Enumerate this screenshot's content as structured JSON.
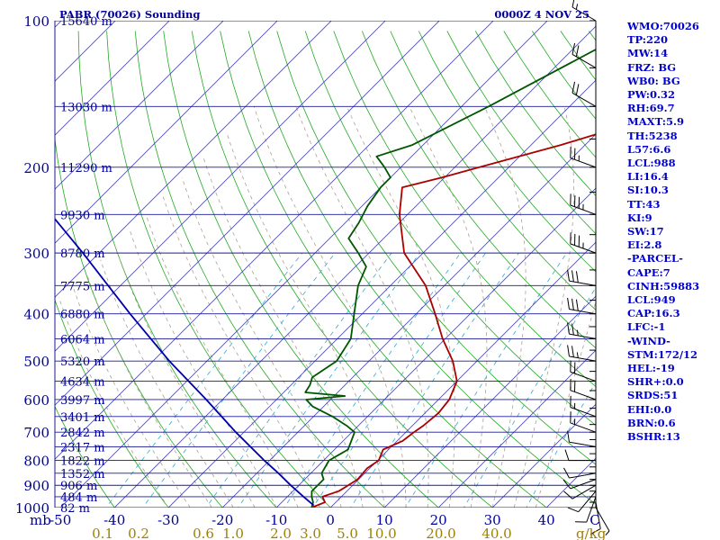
{
  "header": {
    "station": "PABR (70026) Sounding",
    "time": "0000Z  4 NOV 25"
  },
  "sidebar": [
    "WMO:70026",
    "TP:220",
    "MW:14",
    "FRZ: BG",
    "WB0: BG",
    "PW:0.32",
    "RH:69.7",
    "MAXT:5.9",
    "TH:5238",
    "L57:6.6",
    "LCL:988",
    "LI:16.4",
    "SI:10.3",
    "TT:43",
    "KI:9",
    "SW:17",
    "EI:2.8",
    "-PARCEL-",
    "CAPE:7",
    "CINH:59883",
    "LCL:949",
    "CAP:16.3",
    "LFC:-1",
    "-WIND-",
    "STM:172/12",
    "HEL:-19",
    "SHR+:0.0",
    "SRDS:51",
    "EHI:0.0",
    "BRN:0.6",
    "BSHR:13"
  ],
  "colors": {
    "isobar": "#1a1a9a",
    "isotherm": "#4040a0",
    "dry_adiabat": "#22aa22",
    "moist_adiabat": "#b0a090",
    "mixing_ratio": "#33aacc",
    "temperature": "#aa0000",
    "dewpoint": "#005500",
    "parcel": "#0000aa",
    "label": "#000099",
    "mixing_label": "#a08000",
    "wind_barb": "#000000"
  },
  "chart_data": {
    "type": "line",
    "title": "PABR (70026) Sounding",
    "subtitle": "0000Z  4 NOV 25",
    "xlabel": "",
    "ylabel": "mb",
    "y_scale": "log",
    "ylim": [
      1000,
      100
    ],
    "xlim": [
      -50,
      50
    ],
    "grid": true,
    "pressure_ticks": [
      100,
      200,
      300,
      400,
      500,
      600,
      700,
      800,
      900,
      1000
    ],
    "pressure_tick_labels": [
      "100",
      "200",
      "300",
      "400",
      "500",
      "600",
      "700",
      "800",
      "900",
      "1000"
    ],
    "y_axis_title": "mb",
    "temperature_ticks": [
      -50,
      -40,
      -30,
      -20,
      -10,
      0,
      10,
      20,
      30,
      40
    ],
    "temperature_tick_labels": [
      "-50",
      "-40",
      "-30",
      "-20",
      "-10",
      "0",
      "10",
      "20",
      "30",
      "40"
    ],
    "corner_label": "C",
    "mixing_ratio_labels": [
      "0.1",
      "0.2",
      "0.6",
      "1.0",
      "2.0",
      "3.0",
      "5.0",
      "10.0",
      "20.0",
      "40.0"
    ],
    "mixing_ratio_unit": "g/kg",
    "height_labels": [
      {
        "p": 100,
        "label": "15640 m"
      },
      {
        "p": 150,
        "label": "13030 m"
      },
      {
        "p": 200,
        "label": "11290 m"
      },
      {
        "p": 250,
        "label": "9930 m"
      },
      {
        "p": 300,
        "label": "8780 m"
      },
      {
        "p": 350,
        "label": "7775 m"
      },
      {
        "p": 400,
        "label": "6880 m"
      },
      {
        "p": 450,
        "label": "6064 m"
      },
      {
        "p": 500,
        "label": "5320 m"
      },
      {
        "p": 550,
        "label": "4634 m"
      },
      {
        "p": 600,
        "label": "3997 m"
      },
      {
        "p": 650,
        "label": "3401 m"
      },
      {
        "p": 700,
        "label": "2842 m"
      },
      {
        "p": 750,
        "label": "2317 m"
      },
      {
        "p": 800,
        "label": "1822 m"
      },
      {
        "p": 850,
        "label": "1352 m"
      },
      {
        "p": 900,
        "label": "906 m"
      },
      {
        "p": 950,
        "label": "484 m"
      },
      {
        "p": 1000,
        "label": "82 m"
      }
    ],
    "series": [
      {
        "key": "temperature",
        "points": [
          [
            1000,
            -3.5
          ],
          [
            975,
            -2.0
          ],
          [
            950,
            -3.5
          ],
          [
            925,
            -1.5
          ],
          [
            875,
            -0.2
          ],
          [
            830,
            -0.5
          ],
          [
            800,
            0.2
          ],
          [
            760,
            -1.0
          ],
          [
            730,
            1.0
          ],
          [
            700,
            1.5
          ],
          [
            680,
            2.0
          ],
          [
            640,
            2.5
          ],
          [
            600,
            2.0
          ],
          [
            550,
            0.0
          ],
          [
            500,
            -4.5
          ],
          [
            450,
            -10.5
          ],
          [
            400,
            -16.5
          ],
          [
            350,
            -23.5
          ],
          [
            300,
            -33.5
          ],
          [
            250,
            -41.5
          ],
          [
            220,
            -46.0
          ],
          [
            210,
            -40.5
          ],
          [
            200,
            -35.5
          ],
          [
            180,
            -24.5
          ],
          [
            150,
            -8.0
          ],
          [
            125,
            3.0
          ],
          [
            110,
            9.0
          ],
          [
            100,
            13.5
          ]
        ]
      },
      {
        "key": "dewpoint",
        "points": [
          [
            1000,
            -3.5
          ],
          [
            975,
            -4.2
          ],
          [
            950,
            -5.5
          ],
          [
            925,
            -6.5
          ],
          [
            875,
            -6.5
          ],
          [
            850,
            -8.0
          ],
          [
            800,
            -9.0
          ],
          [
            760,
            -7.5
          ],
          [
            700,
            -9.5
          ],
          [
            680,
            -12.0
          ],
          [
            650,
            -16.5
          ],
          [
            620,
            -22.0
          ],
          [
            600,
            -24.5
          ],
          [
            590,
            -18.0
          ],
          [
            580,
            -26.0
          ],
          [
            560,
            -26.5
          ],
          [
            540,
            -27.5
          ],
          [
            500,
            -26.0
          ],
          [
            450,
            -27.5
          ],
          [
            400,
            -31.5
          ],
          [
            350,
            -36.0
          ],
          [
            320,
            -38.0
          ],
          [
            300,
            -42.0
          ],
          [
            280,
            -46.5
          ],
          [
            260,
            -47.5
          ],
          [
            240,
            -49.0
          ],
          [
            220,
            -50.0
          ],
          [
            210,
            -50.0
          ],
          [
            200,
            -53.0
          ],
          [
            190,
            -56.5
          ],
          [
            180,
            -52.0
          ],
          [
            150,
            -45.0
          ],
          [
            100,
            -31.0
          ]
        ]
      },
      {
        "key": "parcel",
        "points": [
          [
            990,
            -3.5
          ],
          [
            950,
            -7.0
          ],
          [
            900,
            -11.5
          ],
          [
            850,
            -16.0
          ],
          [
            800,
            -21.0
          ],
          [
            700,
            -31.5
          ],
          [
            600,
            -43.0
          ],
          [
            500,
            -57.0
          ],
          [
            400,
            -73.0
          ],
          [
            300,
            -93.0
          ],
          [
            250,
            -106.0
          ],
          [
            200,
            -120.0
          ],
          [
            150,
            -137.0
          ],
          [
            125,
            -147.0
          ],
          [
            110,
            -153.0
          ]
        ]
      }
    ],
    "wind_barbs": [
      {
        "p": 1000,
        "dir": 150,
        "kt": 5
      },
      {
        "p": 975,
        "dir": 170,
        "kt": 10
      },
      {
        "p": 950,
        "dir": 200,
        "kt": 10
      },
      {
        "p": 925,
        "dir": 220,
        "kt": 10
      },
      {
        "p": 900,
        "dir": 240,
        "kt": 10
      },
      {
        "p": 875,
        "dir": 250,
        "kt": 10
      },
      {
        "p": 850,
        "dir": 260,
        "kt": 10
      },
      {
        "p": 800,
        "dir": 270,
        "kt": 10
      },
      {
        "p": 750,
        "dir": 280,
        "kt": 10
      },
      {
        "p": 700,
        "dir": 290,
        "kt": 15
      },
      {
        "p": 650,
        "dir": 290,
        "kt": 15
      },
      {
        "p": 600,
        "dir": 290,
        "kt": 20
      },
      {
        "p": 550,
        "dir": 290,
        "kt": 20
      },
      {
        "p": 500,
        "dir": 280,
        "kt": 25
      },
      {
        "p": 450,
        "dir": 280,
        "kt": 25
      },
      {
        "p": 400,
        "dir": 280,
        "kt": 30
      },
      {
        "p": 350,
        "dir": 280,
        "kt": 30
      },
      {
        "p": 300,
        "dir": 290,
        "kt": 35
      },
      {
        "p": 250,
        "dir": 290,
        "kt": 35
      },
      {
        "p": 200,
        "dir": 290,
        "kt": 25
      },
      {
        "p": 150,
        "dir": 300,
        "kt": 20
      },
      {
        "p": 125,
        "dir": 300,
        "kt": 20
      },
      {
        "p": 100,
        "dir": 300,
        "kt": 15
      }
    ]
  }
}
